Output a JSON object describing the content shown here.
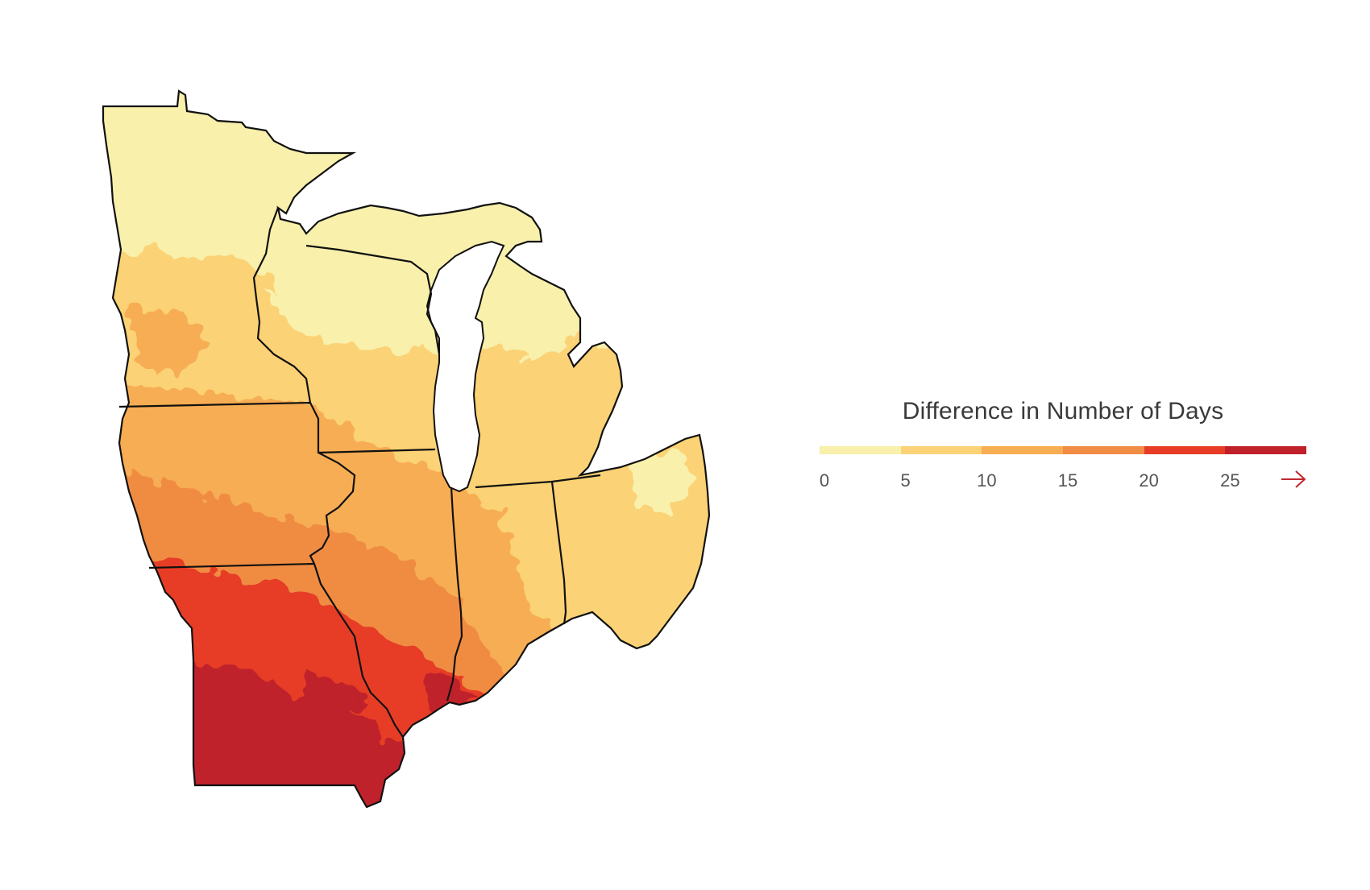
{
  "legend": {
    "title": "Difference in Number of Days",
    "colors": [
      "#f8f0ab",
      "#fbd275",
      "#f7ad52",
      "#f08c43",
      "#e73d26",
      "#bf2029"
    ],
    "ticks": [
      "0",
      "5",
      "10",
      "15",
      "20",
      "25"
    ],
    "arrow_color": "#c0272d",
    "arrow_icon": "right-arrow-icon"
  },
  "map": {
    "fill_colors": {
      "north": "#f8f0ab",
      "mid_north": "#fbd275",
      "mid": "#f7ad52",
      "mid_south": "#f08c43",
      "south": "#e73d26",
      "far_south": "#bf2029"
    },
    "border_color": "#111111",
    "lake_color": "#ffffff"
  }
}
